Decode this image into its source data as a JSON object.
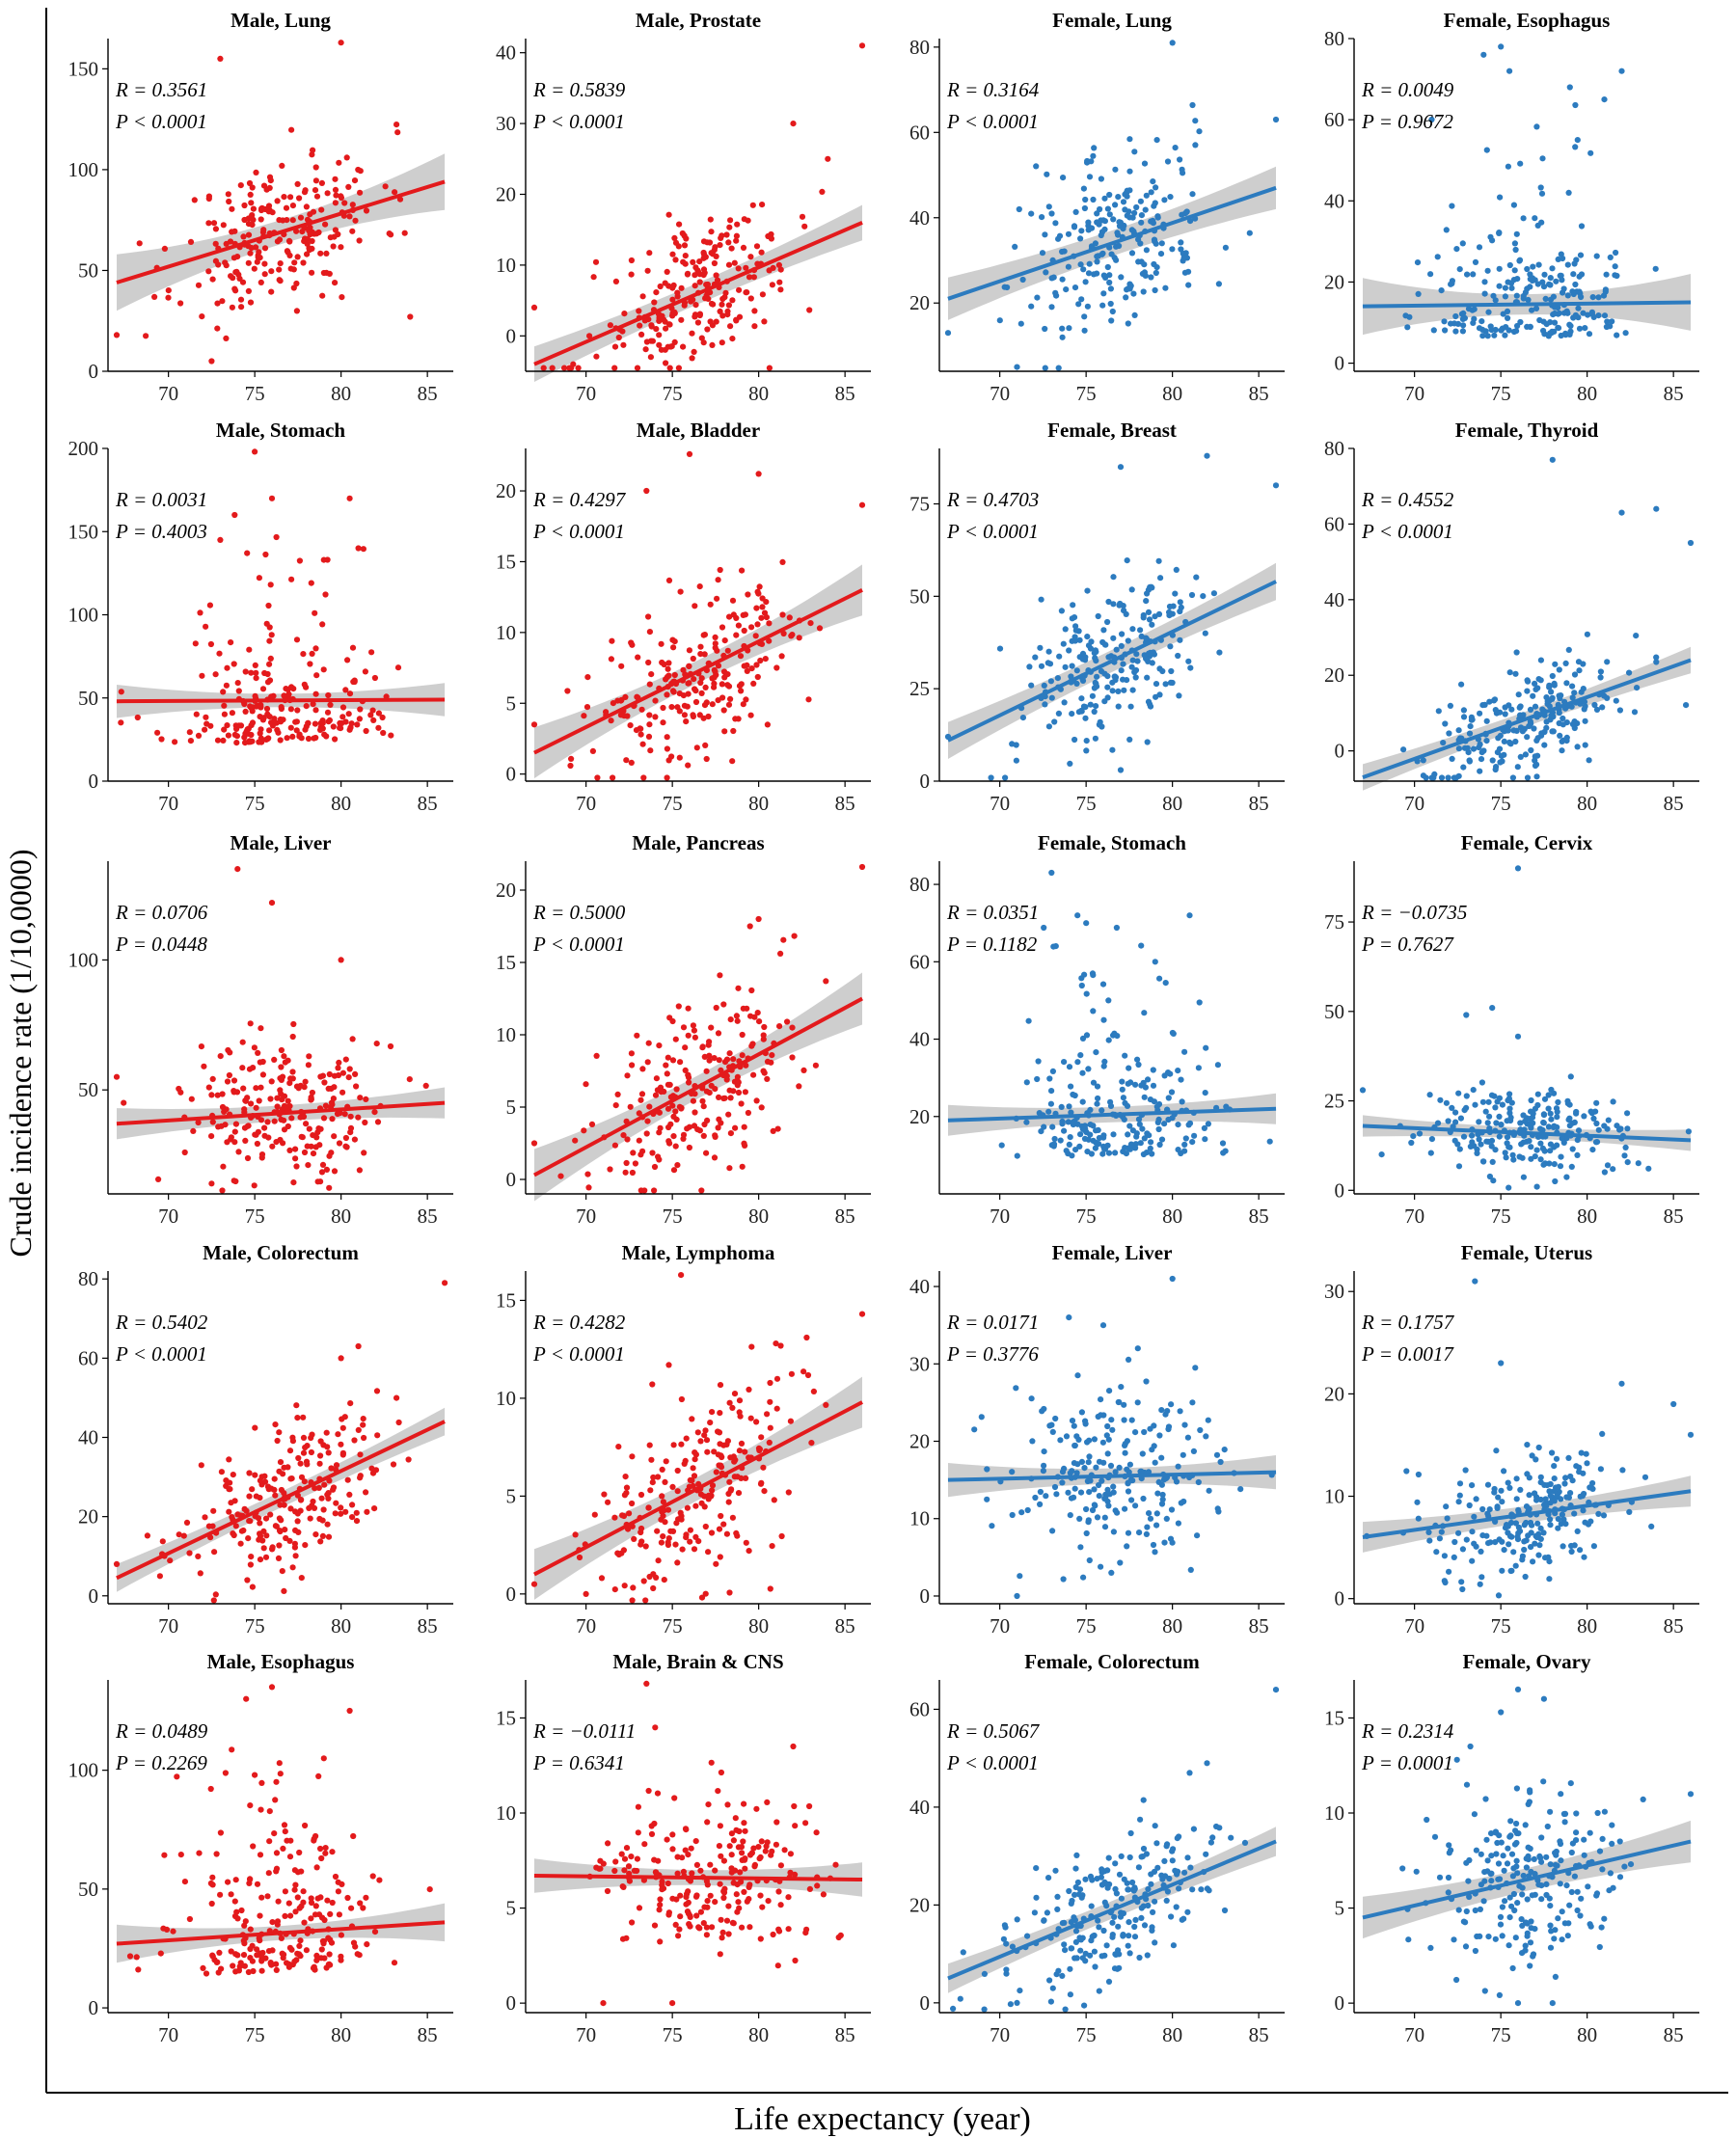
{
  "figure": {
    "xlabel": "Life expectancy (year)",
    "ylabel": "Crude incidence rate (1/10,0000)",
    "colors": {
      "male": "#e31a1c",
      "female": "#2c7bbf",
      "band": "#bdbdbd"
    }
  },
  "chart_data": [
    {
      "type": "scatter",
      "title": "Male, Lung",
      "sex": "male",
      "xlim": [
        66.5,
        86.5
      ],
      "ylim": [
        0,
        165
      ],
      "yticks": [
        0,
        50,
        100,
        150
      ],
      "xticks": [
        70,
        75,
        80,
        85
      ],
      "fit": [
        [
          67,
          44
        ],
        [
          86,
          94
        ]
      ],
      "band": [
        14,
        6
      ],
      "r": "R = 0.3561",
      "p": "P < 0.0001",
      "center": 70,
      "spread": 18,
      "seed": 11,
      "extremes": [
        [
          80,
          163
        ],
        [
          73,
          155
        ],
        [
          72.5,
          5
        ],
        [
          84,
          27
        ],
        [
          67,
          18
        ]
      ]
    },
    {
      "type": "scatter",
      "title": "Male, Prostate",
      "sex": "male",
      "xlim": [
        66.5,
        86.5
      ],
      "ylim": [
        -5,
        42
      ],
      "yticks": [
        0,
        10,
        20,
        30,
        40
      ],
      "xticks": [
        70,
        75,
        80,
        85
      ],
      "fit": [
        [
          67,
          -4
        ],
        [
          86,
          16
        ]
      ],
      "band": [
        2.5,
        1.5
      ],
      "r": "R = 0.5839",
      "p": "P < 0.0001",
      "center": 6,
      "spread": 5,
      "seed": 21,
      "extremes": [
        [
          86,
          41
        ],
        [
          82,
          30
        ],
        [
          84,
          25
        ],
        [
          67,
          4
        ]
      ]
    },
    {
      "type": "scatter",
      "title": "Female, Lung",
      "sex": "female",
      "xlim": [
        66.5,
        86.5
      ],
      "ylim": [
        4,
        82
      ],
      "yticks": [
        20,
        40,
        60,
        80
      ],
      "xticks": [
        70,
        75,
        80,
        85
      ],
      "fit": [
        [
          67,
          21
        ],
        [
          86,
          47
        ]
      ],
      "band": [
        5,
        3
      ],
      "r": "R = 0.3164",
      "p": "P < 0.0001",
      "center": 34,
      "spread": 11,
      "seed": 31,
      "extremes": [
        [
          80,
          81
        ],
        [
          86,
          63
        ],
        [
          71,
          5
        ],
        [
          67,
          13
        ]
      ]
    },
    {
      "type": "scatter",
      "title": "Female, Esophagus",
      "sex": "female",
      "xlim": [
        66.5,
        86.5
      ],
      "ylim": [
        -2,
        80
      ],
      "yticks": [
        0,
        20,
        40,
        60,
        80
      ],
      "xticks": [
        70,
        75,
        80,
        85
      ],
      "fit": [
        [
          67,
          14
        ],
        [
          86,
          15
        ]
      ],
      "band": [
        7,
        2.5
      ],
      "r": "R = 0.0049",
      "p": "P = 0.9672",
      "center": 8,
      "spread": 8,
      "seed": 41,
      "skew": true,
      "extremes": [
        [
          75,
          78
        ],
        [
          74,
          76
        ],
        [
          75.5,
          72
        ],
        [
          82,
          72
        ],
        [
          79,
          68
        ],
        [
          81,
          65
        ]
      ]
    },
    {
      "type": "scatter",
      "title": "Male, Stomach",
      "sex": "male",
      "xlim": [
        66.5,
        86.5
      ],
      "ylim": [
        0,
        200
      ],
      "yticks": [
        0,
        50,
        100,
        150,
        200
      ],
      "xticks": [
        70,
        75,
        80,
        85
      ],
      "fit": [
        [
          67,
          48
        ],
        [
          86,
          49
        ]
      ],
      "band": [
        10,
        4
      ],
      "r": "R = 0.0031",
      "p": "P = 0.4003",
      "center": 35,
      "spread": 15,
      "seed": 51,
      "skew": true,
      "extremes": [
        [
          75,
          198
        ],
        [
          80.5,
          170
        ],
        [
          76,
          170
        ],
        [
          73,
          145
        ],
        [
          81,
          140
        ],
        [
          79,
          133
        ]
      ]
    },
    {
      "type": "scatter",
      "title": "Male, Bladder",
      "sex": "male",
      "xlim": [
        66.5,
        86.5
      ],
      "ylim": [
        -0.5,
        23
      ],
      "yticks": [
        0,
        5,
        10,
        15,
        20
      ],
      "xticks": [
        70,
        75,
        80,
        85
      ],
      "fit": [
        [
          67,
          1.5
        ],
        [
          86,
          13
        ]
      ],
      "band": [
        1.8,
        0.8
      ],
      "r": "R = 0.4297",
      "p": "P < 0.0001",
      "center": 7,
      "spread": 3,
      "seed": 61,
      "extremes": [
        [
          76,
          22.6
        ],
        [
          80,
          21.2
        ],
        [
          86,
          19
        ],
        [
          73.5,
          20
        ],
        [
          67,
          3.5
        ]
      ]
    },
    {
      "type": "scatter",
      "title": "Female, Breast",
      "sex": "female",
      "xlim": [
        66.5,
        86.5
      ],
      "ylim": [
        0,
        90
      ],
      "yticks": [
        0,
        25,
        50,
        75
      ],
      "xticks": [
        70,
        75,
        80,
        85
      ],
      "fit": [
        [
          67,
          11
        ],
        [
          86,
          54
        ]
      ],
      "band": [
        5,
        3
      ],
      "r": "R = 0.4703",
      "p": "P < 0.0001",
      "center": 33,
      "spread": 11,
      "seed": 71,
      "extremes": [
        [
          82,
          88
        ],
        [
          77,
          85
        ],
        [
          86,
          80
        ],
        [
          67,
          12
        ],
        [
          77,
          3
        ]
      ]
    },
    {
      "type": "scatter",
      "title": "Female, Thyroid",
      "sex": "female",
      "xlim": [
        66.5,
        86.5
      ],
      "ylim": [
        -8,
        80
      ],
      "yticks": [
        0,
        20,
        40,
        60,
        80
      ],
      "xticks": [
        70,
        75,
        80,
        85
      ],
      "fit": [
        [
          67,
          -7
        ],
        [
          86,
          24
        ]
      ],
      "band": [
        3.5,
        2
      ],
      "r": "R = 0.4552",
      "p": "P < 0.0001",
      "center": 8,
      "spread": 7,
      "seed": 81,
      "extremes": [
        [
          78,
          77
        ],
        [
          84,
          64
        ],
        [
          82,
          63
        ],
        [
          86,
          55
        ]
      ]
    },
    {
      "type": "scatter",
      "title": "Male, Liver",
      "sex": "male",
      "xlim": [
        66.5,
        86.5
      ],
      "ylim": [
        10,
        138
      ],
      "yticks": [
        50,
        100
      ],
      "xticks": [
        70,
        75,
        80,
        85
      ],
      "fit": [
        [
          67,
          37
        ],
        [
          86,
          45
        ]
      ],
      "band": [
        6,
        3
      ],
      "r": "R = 0.0706",
      "p": "P = 0.0448",
      "center": 42,
      "spread": 14,
      "seed": 91,
      "extremes": [
        [
          74,
          135
        ],
        [
          76,
          122
        ],
        [
          80,
          100
        ],
        [
          67,
          55
        ]
      ]
    },
    {
      "type": "scatter",
      "title": "Male, Pancreas",
      "sex": "male",
      "xlim": [
        66.5,
        86.5
      ],
      "ylim": [
        -1,
        22
      ],
      "yticks": [
        0,
        5,
        10,
        15,
        20
      ],
      "xticks": [
        70,
        75,
        80,
        85
      ],
      "fit": [
        [
          67,
          0.3
        ],
        [
          86,
          12.5
        ]
      ],
      "band": [
        1.8,
        0.8
      ],
      "r": "R = 0.5000",
      "p": "P < 0.0001",
      "center": 7,
      "spread": 3,
      "seed": 101,
      "extremes": [
        [
          86,
          21.6
        ],
        [
          80,
          18
        ],
        [
          79.5,
          17.5
        ],
        [
          67,
          2.5
        ]
      ]
    },
    {
      "type": "scatter",
      "title": "Female, Stomach",
      "sex": "female",
      "xlim": [
        66.5,
        86.5
      ],
      "ylim": [
        0,
        86
      ],
      "yticks": [
        20,
        40,
        60,
        80
      ],
      "xticks": [
        70,
        75,
        80,
        85
      ],
      "fit": [
        [
          67,
          19
        ],
        [
          86,
          22
        ]
      ],
      "band": [
        4,
        2
      ],
      "r": "R = 0.0351",
      "p": "P = 0.1182",
      "center": 18,
      "spread": 8,
      "seed": 111,
      "skew": true,
      "extremes": [
        [
          73,
          83
        ],
        [
          74.5,
          72
        ],
        [
          81,
          72
        ],
        [
          75,
          70
        ],
        [
          79,
          60
        ]
      ]
    },
    {
      "type": "scatter",
      "title": "Female, Cervix",
      "sex": "female",
      "xlim": [
        66.5,
        86.5
      ],
      "ylim": [
        -1,
        92
      ],
      "yticks": [
        0,
        25,
        50,
        75
      ],
      "xticks": [
        70,
        75,
        80,
        85
      ],
      "fit": [
        [
          67,
          18
        ],
        [
          86,
          14
        ]
      ],
      "band": [
        3,
        1.5
      ],
      "r": "R = −0.0735",
      "p": "P = 0.7627",
      "center": 16,
      "spread": 6,
      "seed": 121,
      "extremes": [
        [
          76,
          90
        ],
        [
          74.5,
          51
        ],
        [
          73,
          49
        ],
        [
          76,
          43
        ],
        [
          67,
          28
        ]
      ]
    },
    {
      "type": "scatter",
      "title": "Male, Colorectum",
      "sex": "male",
      "xlim": [
        66.5,
        86.5
      ],
      "ylim": [
        -2,
        82
      ],
      "yticks": [
        0,
        20,
        40,
        60,
        80
      ],
      "xticks": [
        70,
        75,
        80,
        85
      ],
      "fit": [
        [
          67,
          4.5
        ],
        [
          86,
          44
        ]
      ],
      "band": [
        3.5,
        2
      ],
      "r": "R = 0.5402",
      "p": "P < 0.0001",
      "center": 25,
      "spread": 9,
      "seed": 131,
      "extremes": [
        [
          86,
          79
        ],
        [
          81,
          63
        ],
        [
          80,
          60
        ],
        [
          67,
          8
        ]
      ]
    },
    {
      "type": "scatter",
      "title": "Male, Lymphoma",
      "sex": "male",
      "xlim": [
        66.5,
        86.5
      ],
      "ylim": [
        -0.5,
        16.5
      ],
      "yticks": [
        0,
        5,
        10,
        15
      ],
      "xticks": [
        70,
        75,
        80,
        85
      ],
      "fit": [
        [
          67,
          1
        ],
        [
          86,
          9.8
        ]
      ],
      "band": [
        1.3,
        0.6
      ],
      "r": "R = 0.4282",
      "p": "P < 0.0001",
      "center": 5.5,
      "spread": 2.3,
      "seed": 141,
      "extremes": [
        [
          75.5,
          16.3
        ],
        [
          86,
          14.3
        ],
        [
          81,
          12.8
        ],
        [
          67,
          0.5
        ],
        [
          70,
          0
        ]
      ]
    },
    {
      "type": "scatter",
      "title": "Female, Liver",
      "sex": "female",
      "xlim": [
        66.5,
        86.5
      ],
      "ylim": [
        -1,
        42
      ],
      "yticks": [
        0,
        10,
        20,
        30,
        40
      ],
      "xticks": [
        70,
        75,
        80,
        85
      ],
      "fit": [
        [
          67,
          15
        ],
        [
          86,
          16
        ]
      ],
      "band": [
        2.2,
        1
      ],
      " r": "",
      "r": "R = 0.0171",
      "p": "P = 0.3776",
      "center": 15,
      "spread": 5,
      "seed": 151,
      "extremes": [
        [
          80,
          41
        ],
        [
          74,
          36
        ],
        [
          76,
          35
        ],
        [
          78,
          32
        ],
        [
          71,
          0
        ]
      ]
    },
    {
      "type": "scatter",
      "title": "Female, Uterus",
      "sex": "female",
      "xlim": [
        66.5,
        86.5
      ],
      "ylim": [
        -0.5,
        32
      ],
      "yticks": [
        0,
        10,
        20,
        30
      ],
      "xticks": [
        70,
        75,
        80,
        85
      ],
      "fit": [
        [
          67,
          6
        ],
        [
          86,
          10.5
        ]
      ],
      "band": [
        1.5,
        0.8
      ],
      "r": "R = 0.1757",
      "p": "P = 0.0017",
      "center": 8,
      "spread": 3,
      "seed": 161,
      "extremes": [
        [
          73.5,
          31
        ],
        [
          75,
          23
        ],
        [
          82,
          21
        ],
        [
          85,
          19
        ],
        [
          86,
          16
        ]
      ]
    },
    {
      "type": "scatter",
      "title": "Male, Esophagus",
      "sex": "male",
      "xlim": [
        66.5,
        86.5
      ],
      "ylim": [
        -2,
        138
      ],
      "yticks": [
        0,
        50,
        100
      ],
      "xticks": [
        70,
        75,
        80,
        85
      ],
      "fit": [
        [
          67,
          27
        ],
        [
          86,
          36
        ]
      ],
      "band": [
        8,
        3
      ],
      "r": "R = 0.0489",
      "p": "P = 0.2269",
      "center": 25,
      "spread": 15,
      "seed": 171,
      "skew": true,
      "extremes": [
        [
          76,
          135
        ],
        [
          74.5,
          130
        ],
        [
          80.5,
          125
        ],
        [
          79,
          105
        ],
        [
          75,
          98
        ]
      ]
    },
    {
      "type": "scatter",
      "title": "Male, Brain & CNS",
      "sex": "male",
      "xlim": [
        66.5,
        86.5
      ],
      "ylim": [
        -0.5,
        17
      ],
      "yticks": [
        0,
        5,
        10,
        15
      ],
      "xticks": [
        70,
        75,
        80,
        85
      ],
      "fit": [
        [
          67,
          6.7
        ],
        [
          86,
          6.5
        ]
      ],
      "band": [
        0.9,
        0.4
      ],
      "r": "R = −0.0111",
      "p": "P = 0.6341",
      "center": 6.5,
      "spread": 2.2,
      "seed": 181,
      "extremes": [
        [
          73.5,
          16.8
        ],
        [
          74,
          14.5
        ],
        [
          82,
          13.5
        ],
        [
          71,
          0
        ],
        [
          75,
          0
        ]
      ]
    },
    {
      "type": "scatter",
      "title": "Female, Colorectum",
      "sex": "female",
      "xlim": [
        66.5,
        86.5
      ],
      "ylim": [
        -2,
        66
      ],
      "yticks": [
        0,
        20,
        40,
        60
      ],
      "xticks": [
        70,
        75,
        80,
        85
      ],
      "fit": [
        [
          67,
          5
        ],
        [
          86,
          33
        ]
      ],
      "band": [
        3,
        1.8
      ],
      "r": "R = 0.5067",
      "p": "P < 0.0001",
      "center": 20,
      "spread": 7,
      "seed": 191,
      "extremes": [
        [
          86,
          64
        ],
        [
          82,
          49
        ],
        [
          81,
          47
        ],
        [
          71,
          0
        ]
      ]
    },
    {
      "type": "scatter",
      "title": "Female, Ovary",
      "sex": "female",
      "xlim": [
        66.5,
        86.5
      ],
      "ylim": [
        -0.5,
        17
      ],
      "yticks": [
        0,
        5,
        10,
        15
      ],
      "xticks": [
        70,
        75,
        80,
        85
      ],
      "fit": [
        [
          67,
          4.5
        ],
        [
          86,
          8.5
        ]
      ],
      "band": [
        1.1,
        0.6
      ],
      "r": "R = 0.2314",
      "p": "P = 0.0001",
      "center": 6.5,
      "spread": 2.5,
      "seed": 201,
      "extremes": [
        [
          76,
          16.5
        ],
        [
          77.5,
          16
        ],
        [
          75,
          15.3
        ],
        [
          86,
          11
        ],
        [
          76,
          0
        ],
        [
          78,
          0
        ]
      ]
    }
  ]
}
